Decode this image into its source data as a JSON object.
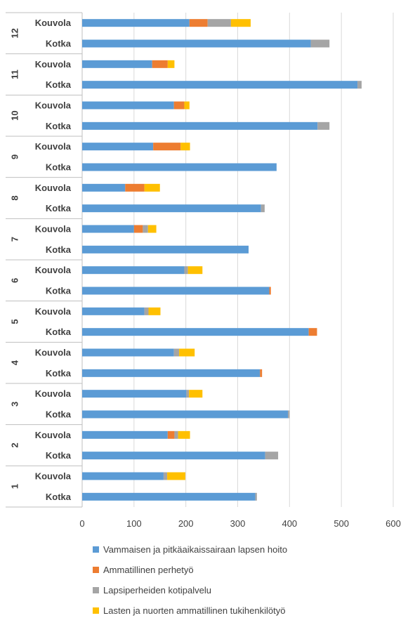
{
  "chart_data": {
    "type": "bar",
    "orientation": "horizontal",
    "stacked": true,
    "title": "",
    "xlabel": "",
    "ylabel": "",
    "xlim": [
      0,
      600
    ],
    "x_ticks": [
      "0",
      "100",
      "200",
      "300",
      "400",
      "500",
      "600"
    ],
    "grid": "vertical gridlines",
    "legend_position": "bottom",
    "groups": [
      "12",
      "11",
      "10",
      "9",
      "8",
      "7",
      "6",
      "5",
      "4",
      "3",
      "2",
      "1"
    ],
    "sub_categories": [
      "Kouvola",
      "Kotka"
    ],
    "series": [
      {
        "name": "Vammaisen ja pitkäaikaissairaan lapsen hoito",
        "color": "#5B9BD5",
        "values": [
          [
            207,
            441
          ],
          [
            135,
            531
          ],
          [
            177,
            454
          ],
          [
            137,
            375
          ],
          [
            83,
            345
          ],
          [
            100,
            321
          ],
          [
            197,
            361
          ],
          [
            120,
            437
          ],
          [
            177,
            343
          ],
          [
            201,
            397
          ],
          [
            165,
            353
          ],
          [
            157,
            334
          ]
        ]
      },
      {
        "name": "Ammatillinen perhetyö",
        "color": "#ED7D31",
        "values": [
          [
            35,
            0
          ],
          [
            30,
            0
          ],
          [
            20,
            0
          ],
          [
            53,
            0
          ],
          [
            37,
            0
          ],
          [
            17,
            0
          ],
          [
            0,
            3
          ],
          [
            0,
            16
          ],
          [
            0,
            4
          ],
          [
            0,
            0
          ],
          [
            13,
            0
          ],
          [
            0,
            0
          ]
        ]
      },
      {
        "name": "Lapsiperheiden kotipalvelu",
        "color": "#A5A5A5",
        "values": [
          [
            45,
            36
          ],
          [
            0,
            8
          ],
          [
            0,
            23
          ],
          [
            0,
            0
          ],
          [
            0,
            7
          ],
          [
            10,
            0
          ],
          [
            7,
            0
          ],
          [
            8,
            0
          ],
          [
            10,
            0
          ],
          [
            5,
            3
          ],
          [
            7,
            25
          ],
          [
            7,
            3
          ]
        ]
      },
      {
        "name": "Lasten ja nuorten ammatillinen tukihenkilötyö",
        "color": "#FFC000",
        "values": [
          [
            38,
            0
          ],
          [
            13,
            0
          ],
          [
            10,
            0
          ],
          [
            18,
            0
          ],
          [
            30,
            0
          ],
          [
            16,
            0
          ],
          [
            28,
            0
          ],
          [
            23,
            0
          ],
          [
            30,
            0
          ],
          [
            26,
            0
          ],
          [
            23,
            0
          ],
          [
            35,
            0
          ]
        ]
      }
    ]
  }
}
